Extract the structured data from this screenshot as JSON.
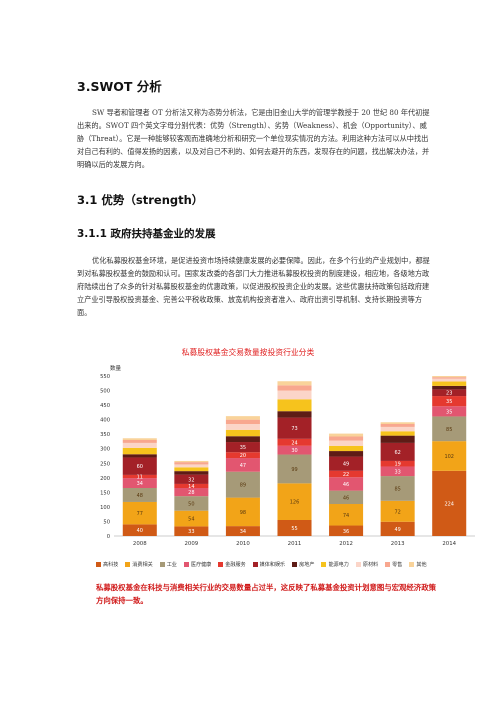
{
  "section": {
    "title": "3.SWOT 分析",
    "intro": "SW 导者和管理者 OT 分析法又称为态势分析法，它是由旧金山大学的管理学教授于 20 世纪 80 年代初提出来的。SWOT 四个英文字母分别代表：优势（Strength）、劣势（Weakness）、机会（Opportunity）、威胁（Threat）。它是一种能够较客观而准确地分析和研究一个单位现实情况的方法。利用这种方法可以从中找出对自己有利的、值得发扬的因素，以及对自己不利的、如何去避开的东西，发现存在的问题，找出解决办法，并明确以后的发展方向。"
  },
  "subsection": {
    "title": "3.1 优势（strength）",
    "sub_title": "3.1.1 政府扶持基金业的发展",
    "body": "优化私募股权基金环境，是促进投资市场持续健康发展的必要保障。因此，在多个行业的产业规划中，都提到对私募股权基金的鼓励和认可。国家发改委的各部门大力推进私募股权投资的制度建设，相应地，各级地方政府陆续出台了众多的针对私募股权基金的优惠政策，以促进股权投资企业的发展。这些优惠扶持政策包括政府建立产业引导股权投资基金、完善公平税收政策、放宽机构投资者准入、政府出资引导机制、支持长期投资等方面。"
  },
  "chart_data": {
    "type": "bar",
    "stacked": true,
    "title": "私募股权基金交易数量按投资行业分类",
    "ylabel": "数量",
    "ylim": [
      0,
      550
    ],
    "yticks": [
      0,
      50,
      100,
      150,
      200,
      250,
      300,
      350,
      400,
      450,
      500,
      550
    ],
    "categories": [
      "2008",
      "2009",
      "2010",
      "2011",
      "2012",
      "2013",
      "2014"
    ],
    "series": [
      {
        "name": "高科技",
        "color": "#d05a16",
        "values": [
          40,
          33,
          34,
          55,
          36,
          49,
          224
        ]
      },
      {
        "name": "消费相关",
        "color": "#f2a418",
        "values": [
          77,
          54,
          98,
          126,
          74,
          72,
          102
        ]
      },
      {
        "name": "工业",
        "color": "#a69a78",
        "values": [
          48,
          50,
          89,
          99,
          46,
          85,
          85
        ]
      },
      {
        "name": "医疗健康",
        "color": "#e25670",
        "values": [
          34,
          28,
          47,
          30,
          46,
          33,
          35
        ]
      },
      {
        "name": "金融服务",
        "color": "#e5392f",
        "values": [
          11,
          14,
          20,
          24,
          22,
          19,
          35
        ]
      },
      {
        "name": "媒体和娱乐",
        "color": "#a32127",
        "values": [
          60,
          32,
          35,
          73,
          49,
          62,
          23
        ]
      },
      {
        "name": "房地产",
        "color": "#5e1c16",
        "values": [
          11,
          12,
          20,
          22,
          19,
          25,
          12
        ]
      },
      {
        "name": "能源电力",
        "color": "#f6c31d",
        "values": [
          22,
          13,
          22,
          41,
          18,
          15,
          15
        ]
      },
      {
        "name": "原材料",
        "color": "#fbd5c8",
        "values": [
          17,
          10,
          20,
          30,
          18,
          15,
          10
        ]
      },
      {
        "name": "零售",
        "color": "#f8a78f",
        "values": [
          10,
          8,
          15,
          18,
          14,
          10,
          5
        ]
      },
      {
        "name": "其他",
        "color": "#f9d39a",
        "values": [
          6,
          4,
          12,
          14,
          10,
          6,
          4
        ]
      }
    ],
    "data_labels": [
      {
        "category": "2008",
        "series": "高科技",
        "value": 40
      },
      {
        "category": "2008",
        "series": "消费相关",
        "value": 77
      },
      {
        "category": "2008",
        "series": "工业",
        "value": 48
      },
      {
        "category": "2008",
        "series": "医疗健康",
        "value": 34
      },
      {
        "category": "2008",
        "series": "金融服务",
        "value": 11
      },
      {
        "category": "2008",
        "series": "媒体和娱乐",
        "value": 60
      },
      {
        "category": "2009",
        "series": "高科技",
        "value": 33
      },
      {
        "category": "2009",
        "series": "消费相关",
        "value": 54
      },
      {
        "category": "2009",
        "series": "工业",
        "value": 50
      },
      {
        "category": "2009",
        "series": "医疗健康",
        "value": 28
      },
      {
        "category": "2009",
        "series": "金融服务",
        "value": 14
      },
      {
        "category": "2009",
        "series": "媒体和娱乐",
        "value": 32
      },
      {
        "category": "2010",
        "series": "高科技",
        "value": 34
      },
      {
        "category": "2010",
        "series": "消费相关",
        "value": 98
      },
      {
        "category": "2010",
        "series": "工业",
        "value": 89
      },
      {
        "category": "2010",
        "series": "医疗健康",
        "value": 47
      },
      {
        "category": "2010",
        "series": "金融服务",
        "value": 20
      },
      {
        "category": "2010",
        "series": "媒体和娱乐",
        "value": 35
      },
      {
        "category": "2011",
        "series": "高科技",
        "value": 55
      },
      {
        "category": "2011",
        "series": "消费相关",
        "value": 126
      },
      {
        "category": "2011",
        "series": "工业",
        "value": 99
      },
      {
        "category": "2011",
        "series": "医疗健康",
        "value": 30
      },
      {
        "category": "2011",
        "series": "金融服务",
        "value": 24
      },
      {
        "category": "2011",
        "series": "媒体和娱乐",
        "value": 73
      },
      {
        "category": "2012",
        "series": "高科技",
        "value": 36
      },
      {
        "category": "2012",
        "series": "消费相关",
        "value": 74
      },
      {
        "category": "2012",
        "series": "工业",
        "value": 46
      },
      {
        "category": "2012",
        "series": "医疗健康",
        "value": 46
      },
      {
        "category": "2012",
        "series": "金融服务",
        "value": 22
      },
      {
        "category": "2012",
        "series": "媒体和娱乐",
        "value": 49
      },
      {
        "category": "2013",
        "series": "高科技",
        "value": 49
      },
      {
        "category": "2013",
        "series": "消费相关",
        "value": 72
      },
      {
        "category": "2013",
        "series": "工业",
        "value": 85
      },
      {
        "category": "2013",
        "series": "医疗健康",
        "value": 33
      },
      {
        "category": "2013",
        "series": "金融服务",
        "value": 19
      },
      {
        "category": "2013",
        "series": "媒体和娱乐",
        "value": 62
      },
      {
        "category": "2014",
        "series": "高科技",
        "value": 224
      },
      {
        "category": "2014",
        "series": "消费相关",
        "value": 102
      },
      {
        "category": "2014",
        "series": "工业",
        "value": 85
      },
      {
        "category": "2014",
        "series": "医疗健康",
        "value": 35
      },
      {
        "category": "2014",
        "series": "金融服务",
        "value": 35
      },
      {
        "category": "2014",
        "series": "媒体和娱乐",
        "value": 23
      }
    ],
    "legend_position": "bottom",
    "grid": false
  },
  "caption": "私募股权基金在科技与消费相关行业的交易数量占过半，这反映了私募基金投资计划意图与宏观经济政策方向保持一致。"
}
